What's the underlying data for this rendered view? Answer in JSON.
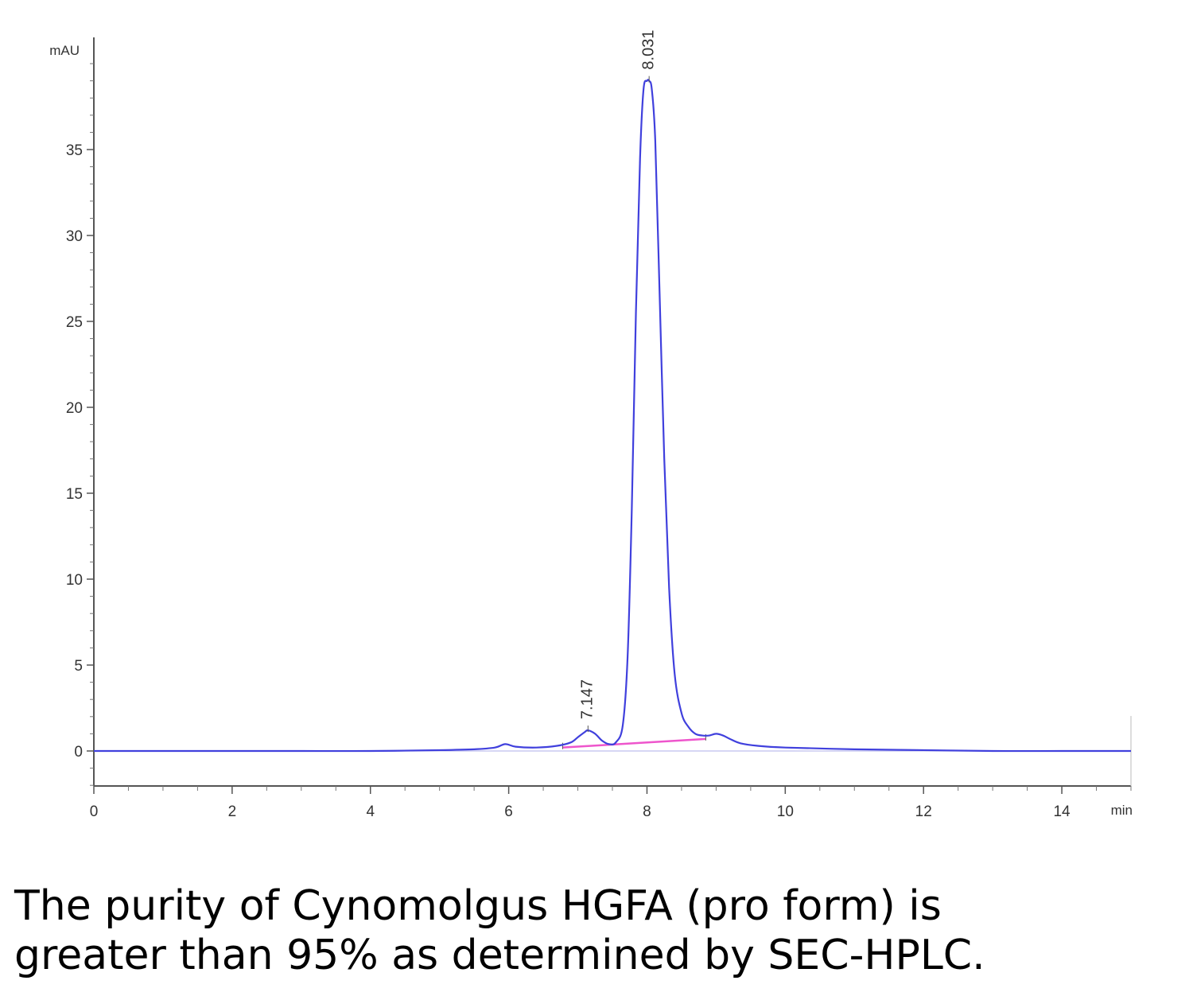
{
  "chart_data": {
    "type": "line",
    "ylabel": "mAU",
    "xlabel": "min",
    "xlim": [
      0,
      15
    ],
    "ylim": [
      -2,
      41
    ],
    "x_ticks": [
      0,
      2,
      4,
      6,
      8,
      10,
      12,
      14
    ],
    "x_tick_labels": [
      "0",
      "2",
      "4",
      "6",
      "8",
      "10",
      "12",
      "14"
    ],
    "y_ticks": [
      0,
      5,
      10,
      15,
      20,
      25,
      30,
      35
    ],
    "y_tick_labels": [
      "0",
      "5",
      "10",
      "15",
      "20",
      "25",
      "30",
      "35"
    ],
    "grid": false,
    "series": [
      {
        "color": "#4040dd",
        "x": [
          0,
          1,
          2,
          3,
          4,
          5,
          5.5,
          5.8,
          5.95,
          6.1,
          6.4,
          6.7,
          6.9,
          7.0,
          7.1,
          7.147,
          7.25,
          7.35,
          7.45,
          7.55,
          7.65,
          7.72,
          7.78,
          7.84,
          7.9,
          7.95,
          8.0,
          8.031,
          8.07,
          8.12,
          8.18,
          8.25,
          8.32,
          8.4,
          8.5,
          8.6,
          8.7,
          8.8,
          8.9,
          9.0,
          9.1,
          9.2,
          9.35,
          9.6,
          10.0,
          11.0,
          12.0,
          13.0,
          14.0,
          15.0
        ],
        "y": [
          0,
          0,
          0,
          0,
          0,
          0.05,
          0.1,
          0.2,
          0.4,
          0.25,
          0.2,
          0.3,
          0.5,
          0.8,
          1.1,
          1.2,
          1.0,
          0.6,
          0.4,
          0.5,
          1.5,
          5.5,
          14.0,
          25.5,
          34.5,
          38.5,
          39.0,
          39.0,
          38.5,
          35.5,
          27.0,
          17.0,
          9.5,
          4.5,
          2.2,
          1.4,
          1.0,
          0.9,
          0.9,
          1.0,
          0.9,
          0.7,
          0.45,
          0.3,
          0.2,
          0.1,
          0.05,
          0,
          0,
          0
        ]
      }
    ],
    "baselines": [
      {
        "color": "#ee55cc",
        "x": [
          6.78,
          8.85
        ],
        "y": [
          0.2,
          0.7
        ]
      }
    ],
    "annotations": [
      {
        "text": "7.147",
        "x": 7.147,
        "y": 1.2
      },
      {
        "text": "8.031",
        "x": 8.031,
        "y": 39.0
      }
    ]
  },
  "caption": {
    "line1": "The purity of Cynomolgus HGFA (pro form) is",
    "line2": "greater than 95% as determined by SEC-HPLC."
  }
}
